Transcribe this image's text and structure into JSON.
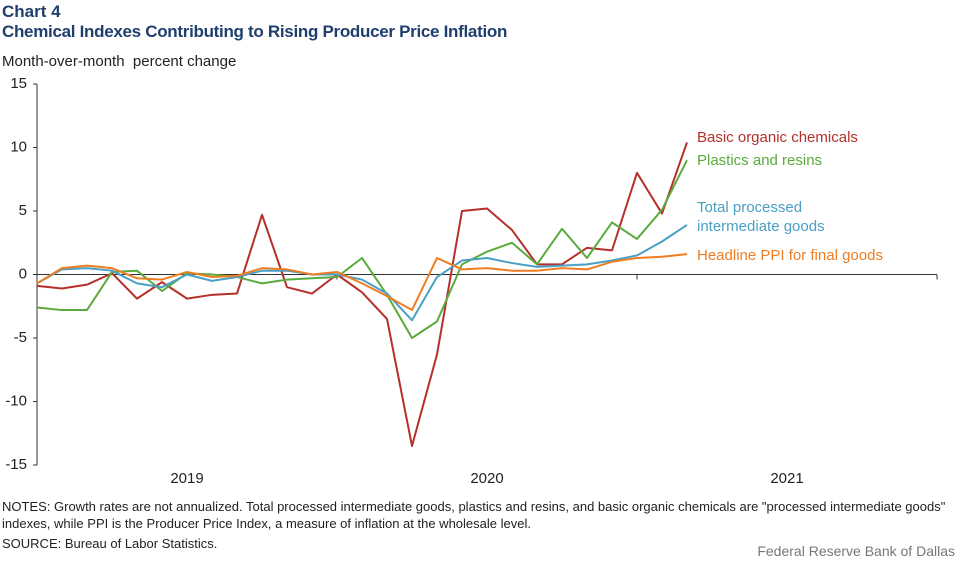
{
  "chart_data": {
    "type": "line",
    "title": "Chart 4",
    "subtitle": "Chemical Indexes Contributing to Rising Producer Price Inflation",
    "y_axis_label": "Month-over-month  percent change",
    "categories": [
      null,
      null,
      null,
      null,
      null,
      null,
      null,
      null,
      null,
      null,
      null,
      null,
      null,
      null,
      null,
      null,
      null,
      null,
      null,
      null,
      null,
      null,
      null,
      null,
      null,
      null,
      null
    ],
    "year_labels": [
      "2019",
      "2020",
      "2021"
    ],
    "ylim": [
      -15,
      15
    ],
    "yticks": [
      15,
      10,
      5,
      0,
      -5,
      -10,
      -15
    ],
    "grid": false,
    "series": [
      {
        "name": "Basic organic chemicals",
        "color": "#b5302a",
        "values": [
          -0.9,
          -1.1,
          -0.8,
          0.1,
          -1.9,
          -0.6,
          -1.9,
          -1.6,
          -1.5,
          4.7,
          -1.0,
          -1.5,
          0.0,
          -1.4,
          -3.5,
          -13.5,
          -6.3,
          5.0,
          5.2,
          3.5,
          0.8,
          0.8,
          2.1,
          1.9,
          8.0,
          4.8,
          10.4
        ]
      },
      {
        "name": "Plastics and resins",
        "color": "#5aab3c",
        "values": [
          -2.6,
          -2.8,
          -2.8,
          0.2,
          0.3,
          -1.3,
          0.1,
          0.0,
          -0.2,
          -0.7,
          -0.4,
          -0.3,
          -0.2,
          1.3,
          -1.6,
          -5.0,
          -3.7,
          0.8,
          1.8,
          2.5,
          0.8,
          3.6,
          1.3,
          4.1,
          2.8,
          5.1,
          9.0
        ]
      },
      {
        "name": "Total processed\nintermediate goods",
        "color": "#4a9fc4",
        "values": [
          -0.7,
          0.4,
          0.5,
          0.3,
          -0.7,
          -1.0,
          0.0,
          -0.5,
          -0.2,
          0.3,
          0.3,
          0.0,
          0.0,
          -0.4,
          -1.5,
          -3.6,
          -0.2,
          1.1,
          1.3,
          0.9,
          0.6,
          0.7,
          0.8,
          1.1,
          1.5,
          2.6,
          3.9
        ]
      },
      {
        "name": "Headline PPI for final goods",
        "color": "#ef7d22",
        "values": [
          -0.7,
          0.5,
          0.7,
          0.5,
          -0.3,
          -0.4,
          0.2,
          -0.2,
          -0.1,
          0.5,
          0.4,
          0.0,
          0.2,
          -0.7,
          -1.7,
          -2.8,
          1.3,
          0.4,
          0.5,
          0.3,
          0.3,
          0.5,
          0.4,
          1.0,
          1.3,
          1.4,
          1.6
        ]
      }
    ],
    "notes": "NOTES: Growth rates are not annualized.  Total processed intermediate goods, plastics and resins, and basic organic chemicals are \"processed intermediate goods\" indexes, while PPI is the Producer Price Index,  a measure of inflation  at the wholesale level.",
    "source": "SOURCE: Bureau of Labor Statistics.",
    "credit": "Federal Reserve Bank of Dallas"
  }
}
